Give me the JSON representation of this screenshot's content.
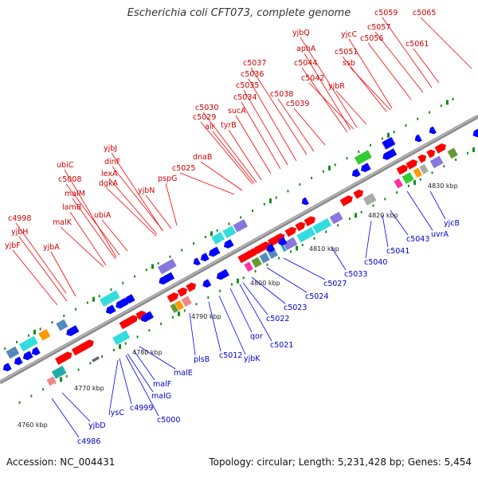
{
  "title": "Escherichia coli CFT073, complete genome",
  "footer": {
    "accession": "Accession: NC_004431",
    "summary": "Topology: circular; Length: 5,231,428 bp; Genes: 5,454"
  },
  "colors": {
    "backbone": "#8c8c8c",
    "forward_gene": "#ff0000",
    "reverse_gene": "#0000ff",
    "tick": "#1a8a1a",
    "cog_cyan": "#33dddd",
    "cog_teal": "#22aaaa",
    "cog_lavender": "#8877dd",
    "cog_pink": "#ff3399",
    "cog_green": "#33cc33",
    "cog_gray": "#aaaaaa",
    "cog_orange": "#ff9900",
    "cog_steel": "#5588bb",
    "cog_rose": "#ee8888",
    "cog_olive": "#669933"
  },
  "scale_labels": [
    "4760 kbp",
    "4770 kbp",
    "4780 kbp",
    "4790 kbp",
    "4800 kbp",
    "4810 kbp",
    "4820 kbp",
    "4830 kbp"
  ],
  "forward_genes": [
    "c4998",
    "yjbH",
    "yjbF",
    "yjbA",
    "malK",
    "lamB",
    "malM",
    "ubiC",
    "c5008",
    "ubiA",
    "dgkA",
    "lexA",
    "dinF",
    "yjbJ",
    "yjbN",
    "pspG",
    "c5025",
    "dnaB",
    "alr",
    "tyrB",
    "c5029",
    "c5030",
    "sucA",
    "c5034",
    "c5035",
    "c5036",
    "c5037",
    "c5038",
    "c5039",
    "c5042",
    "c5044",
    "aphA",
    "yjbQ",
    "yjbR",
    "ssb",
    "c5051",
    "yjcC",
    "c5056",
    "c5057",
    "c5059",
    "c5061",
    "c5065"
  ],
  "reverse_genes": [
    "c4986",
    "yjbD",
    "lysC",
    "c4999",
    "c5000",
    "malG",
    "malF",
    "malE",
    "plsB",
    "c5012",
    "yjbK",
    "qor",
    "c5021",
    "c5022",
    "c5023",
    "c5024",
    "c5027",
    "c5033",
    "c5040",
    "c5041",
    "c5043",
    "uvrA",
    "yjcB"
  ]
}
